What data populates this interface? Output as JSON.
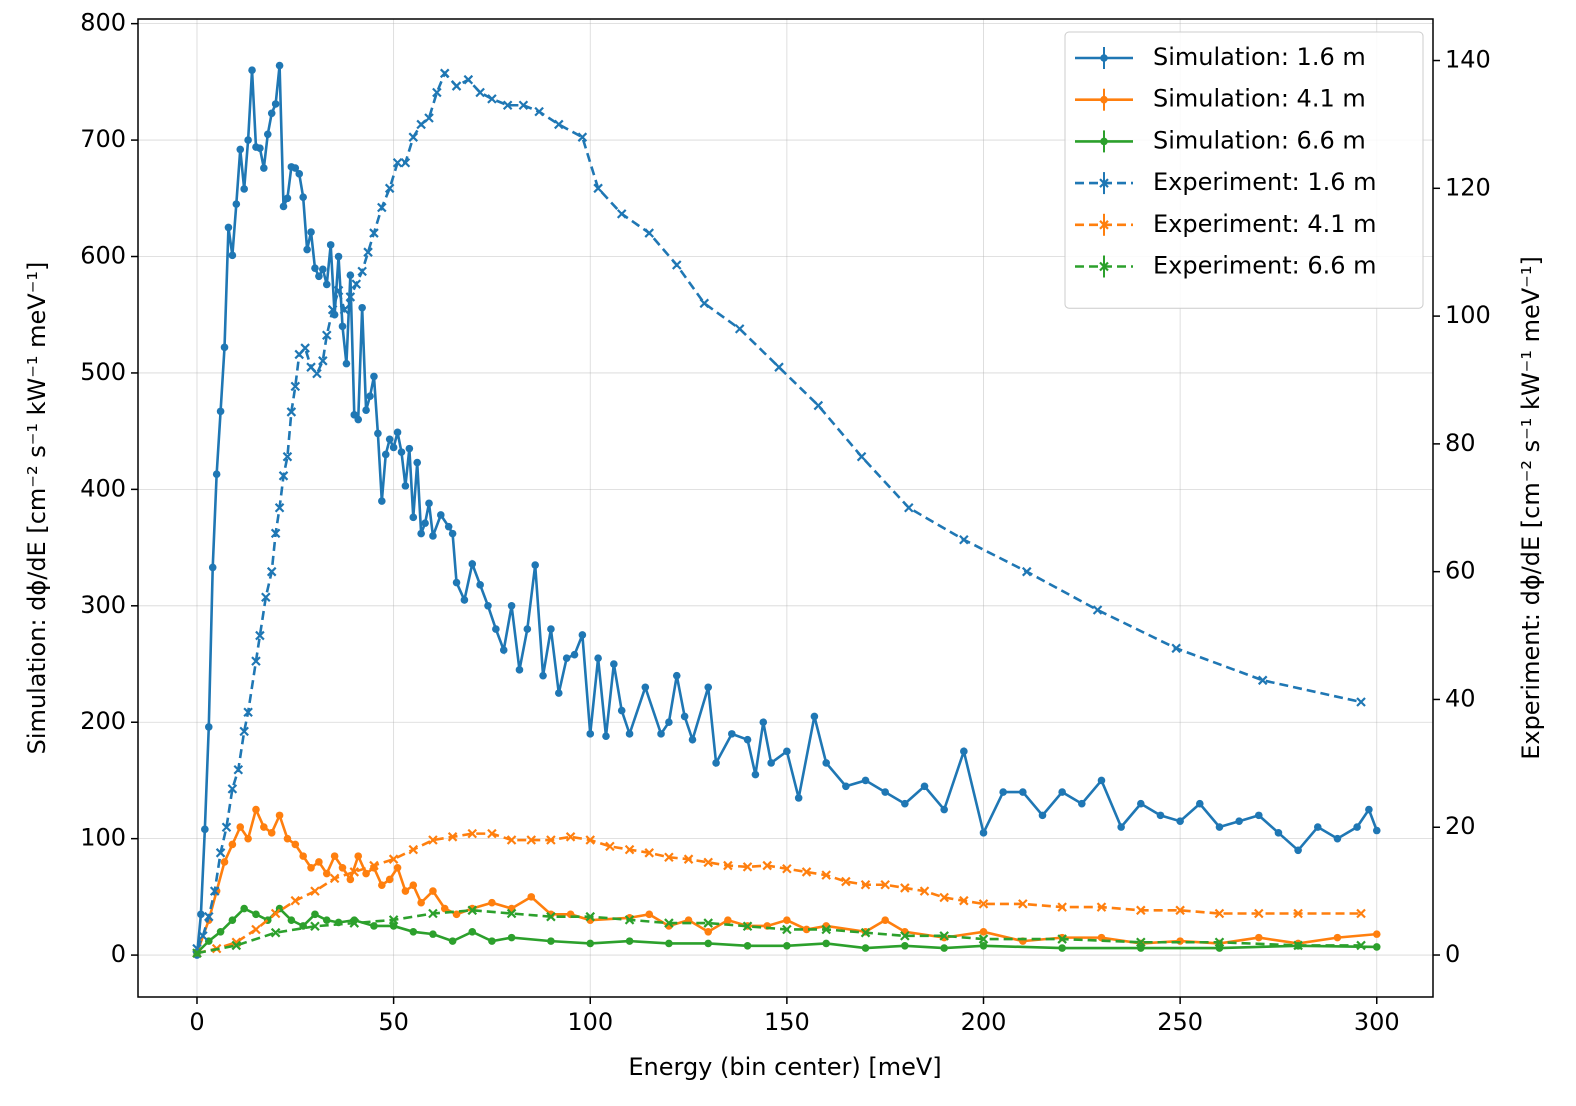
{
  "chart_data": {
    "type": "line",
    "xlabel": "Energy (bin center) [meV]",
    "ylabel": "Simulation: dϕ/dE [cm⁻² s⁻¹ kW⁻¹ meV⁻¹]",
    "y2label": "Experiment: dϕ/dE [cm⁻² s⁻¹ kW⁻¹ meV⁻¹]",
    "xlim": [
      -15,
      314.3
    ],
    "ylim": [
      -36,
      804
    ],
    "y2lim": [
      -6.57,
      146.5
    ],
    "xticks": [
      0,
      50,
      100,
      150,
      200,
      250,
      300
    ],
    "yticks": [
      0,
      100,
      200,
      300,
      400,
      500,
      600,
      700,
      800
    ],
    "y2ticks": [
      0,
      20,
      40,
      60,
      80,
      100,
      120,
      140
    ],
    "grid": true,
    "legend": "upper right",
    "series": [
      {
        "name": "Simulation: 1.6 m",
        "color": "#1f77b4",
        "linestyle": "solid",
        "marker": "circle",
        "axis": "y",
        "x": [
          0,
          1,
          2,
          3,
          4,
          5,
          6,
          7,
          8,
          9,
          10,
          11,
          12,
          13,
          14,
          15,
          16,
          17,
          18,
          19,
          20,
          21,
          22,
          23,
          24,
          25,
          26,
          27,
          28,
          29,
          30,
          31,
          32,
          33,
          34,
          35,
          36,
          37,
          38,
          39,
          40,
          41,
          42,
          43,
          44,
          45,
          46,
          47,
          48,
          49,
          50,
          51,
          52,
          53,
          54,
          55,
          56,
          57,
          58,
          59,
          60,
          62,
          64,
          65,
          66,
          68,
          70,
          72,
          74,
          76,
          78,
          80,
          82,
          84,
          86,
          88,
          90,
          92,
          94,
          96,
          98,
          100,
          102,
          104,
          106,
          108,
          110,
          114,
          118,
          120,
          122,
          124,
          126,
          130,
          132,
          136,
          140,
          142,
          144,
          146,
          150,
          153,
          157,
          160,
          165,
          170,
          175,
          180,
          185,
          190,
          195,
          200,
          205,
          210,
          215,
          220,
          225,
          230,
          235,
          240,
          245,
          250,
          255,
          260,
          265,
          270,
          275,
          280,
          285,
          290,
          295,
          298,
          300
        ],
        "values": [
          0,
          35,
          108,
          196,
          333,
          413,
          467,
          522,
          625,
          601,
          645,
          692,
          658,
          700,
          760,
          694,
          693,
          676,
          705,
          723,
          731,
          764,
          643,
          650,
          677,
          676,
          671,
          651,
          606,
          621,
          590,
          583,
          589,
          576,
          610,
          550,
          600,
          540,
          508,
          584,
          464,
          460,
          556,
          468,
          480,
          497,
          448,
          390,
          430,
          443,
          436,
          449,
          432,
          403,
          435,
          376,
          423,
          362,
          371,
          388,
          360,
          378,
          368,
          362,
          320,
          305,
          336,
          318,
          300,
          280,
          262,
          300,
          245,
          280,
          335,
          240,
          280,
          225,
          255,
          258,
          275,
          190,
          255,
          188,
          250,
          210,
          190,
          230,
          190,
          200,
          240,
          205,
          185,
          230,
          165,
          190,
          185,
          155,
          200,
          165,
          175,
          135,
          205,
          165,
          145,
          150,
          140,
          130,
          145,
          125,
          175,
          105,
          140,
          140,
          120,
          140,
          130,
          150,
          110,
          130,
          120,
          115,
          130,
          110,
          115,
          120,
          105,
          90,
          110,
          100,
          110,
          125,
          107
        ]
      },
      {
        "name": "Simulation: 4.1 m",
        "color": "#ff7f0e",
        "linestyle": "solid",
        "marker": "circle",
        "axis": "y",
        "x": [
          0,
          3,
          5,
          7,
          9,
          11,
          13,
          15,
          17,
          19,
          21,
          23,
          25,
          27,
          29,
          31,
          33,
          35,
          37,
          39,
          41,
          43,
          45,
          47,
          49,
          51,
          53,
          55,
          57,
          60,
          63,
          66,
          70,
          75,
          80,
          85,
          90,
          95,
          100,
          110,
          115,
          120,
          125,
          130,
          135,
          140,
          145,
          150,
          155,
          160,
          170,
          175,
          180,
          190,
          200,
          210,
          220,
          230,
          240,
          250,
          260,
          270,
          280,
          290,
          300
        ],
        "values": [
          2,
          30,
          55,
          80,
          95,
          110,
          100,
          125,
          110,
          105,
          120,
          100,
          95,
          85,
          75,
          80,
          70,
          85,
          75,
          65,
          85,
          70,
          75,
          60,
          65,
          75,
          55,
          60,
          45,
          55,
          40,
          35,
          40,
          45,
          40,
          50,
          35,
          35,
          30,
          32,
          35,
          25,
          30,
          20,
          30,
          25,
          25,
          30,
          22,
          25,
          20,
          30,
          20,
          15,
          20,
          12,
          15,
          15,
          10,
          12,
          10,
          15,
          10,
          15,
          18
        ]
      },
      {
        "name": "Simulation: 6.6 m",
        "color": "#2ca02c",
        "linestyle": "solid",
        "marker": "circle",
        "axis": "y",
        "x": [
          0,
          3,
          6,
          9,
          12,
          15,
          18,
          21,
          24,
          27,
          30,
          33,
          36,
          40,
          45,
          50,
          55,
          60,
          65,
          70,
          75,
          80,
          90,
          100,
          110,
          120,
          130,
          140,
          150,
          160,
          170,
          180,
          190,
          200,
          220,
          240,
          260,
          280,
          300
        ],
        "values": [
          2,
          12,
          20,
          30,
          40,
          35,
          30,
          40,
          30,
          25,
          35,
          30,
          28,
          30,
          25,
          25,
          20,
          18,
          12,
          20,
          12,
          15,
          12,
          10,
          12,
          10,
          10,
          8,
          8,
          10,
          6,
          8,
          6,
          8,
          6,
          6,
          6,
          8,
          7
        ]
      },
      {
        "name": "Experiment: 1.6 m",
        "color": "#1f77b4",
        "linestyle": "dashed",
        "marker": "x",
        "axis": "y2",
        "x": [
          0,
          1.5,
          3,
          4.5,
          6,
          7.5,
          9,
          10.5,
          12,
          13,
          15,
          16,
          17.5,
          19,
          20,
          21,
          22,
          23,
          24,
          25,
          26,
          27.5,
          29,
          30.5,
          32,
          33,
          34.5,
          36,
          37.5,
          39,
          40.5,
          42,
          43.5,
          45,
          47,
          49,
          51,
          53,
          55,
          57,
          59,
          61,
          63,
          66,
          69,
          72,
          75,
          79,
          83,
          87,
          92,
          98,
          102,
          108,
          115,
          122,
          129,
          138,
          148,
          158,
          169,
          181,
          195,
          211,
          229,
          249,
          271,
          296
        ],
        "values": [
          1,
          3,
          6,
          10,
          16,
          20,
          26,
          29,
          35,
          38,
          46,
          50,
          56,
          60,
          66,
          70,
          75,
          78,
          85,
          89,
          94,
          95,
          92,
          91,
          93,
          97,
          101,
          104,
          101,
          103,
          105,
          107,
          110,
          113,
          117,
          120,
          124,
          124,
          128,
          130,
          131,
          135,
          138,
          136,
          137,
          135,
          134,
          133,
          133,
          132,
          130,
          128,
          120,
          116,
          113,
          108,
          102,
          98,
          92,
          86,
          78,
          70,
          65,
          60,
          54,
          48,
          43,
          39.6
        ]
      },
      {
        "name": "Experiment: 4.1 m",
        "color": "#ff7f0e",
        "linestyle": "dashed",
        "marker": "x",
        "axis": "y2",
        "x": [
          0,
          5,
          10,
          15,
          20,
          25,
          30,
          35,
          40,
          45,
          50,
          55,
          60,
          65,
          70,
          75,
          80,
          85,
          90,
          95,
          100,
          105,
          110,
          115,
          120,
          125,
          130,
          135,
          140,
          145,
          150,
          155,
          160,
          165,
          170,
          175,
          180,
          185,
          190,
          195,
          200,
          210,
          220,
          230,
          240,
          250,
          260,
          270,
          280,
          296
        ],
        "values": [
          0.3,
          1,
          2,
          4,
          6.5,
          8.5,
          10,
          12,
          13,
          14,
          15,
          16.5,
          18,
          18.5,
          19,
          19,
          18,
          18,
          18,
          18.5,
          18,
          17,
          16.5,
          16,
          15.3,
          15,
          14.5,
          14,
          13.8,
          14,
          13.5,
          13,
          12.5,
          11.5,
          11,
          11,
          10.5,
          10,
          9,
          8.5,
          8,
          8,
          7.5,
          7.5,
          7,
          7,
          6.5,
          6.5,
          6.5,
          6.5
        ]
      },
      {
        "name": "Experiment: 6.6 m",
        "color": "#2ca02c",
        "linestyle": "dashed",
        "marker": "x",
        "axis": "y2",
        "x": [
          0,
          10,
          20,
          30,
          40,
          50,
          60,
          70,
          80,
          90,
          100,
          110,
          120,
          130,
          140,
          150,
          160,
          170,
          180,
          190,
          200,
          220,
          240,
          260,
          280,
          296
        ],
        "values": [
          0.3,
          1.5,
          3.5,
          4.5,
          5,
          5.5,
          6.5,
          7,
          6.5,
          6,
          6,
          5.5,
          5,
          5,
          4.5,
          4,
          4,
          3.5,
          3,
          3,
          2.5,
          2.5,
          2,
          2,
          1.5,
          1.5
        ]
      }
    ]
  }
}
